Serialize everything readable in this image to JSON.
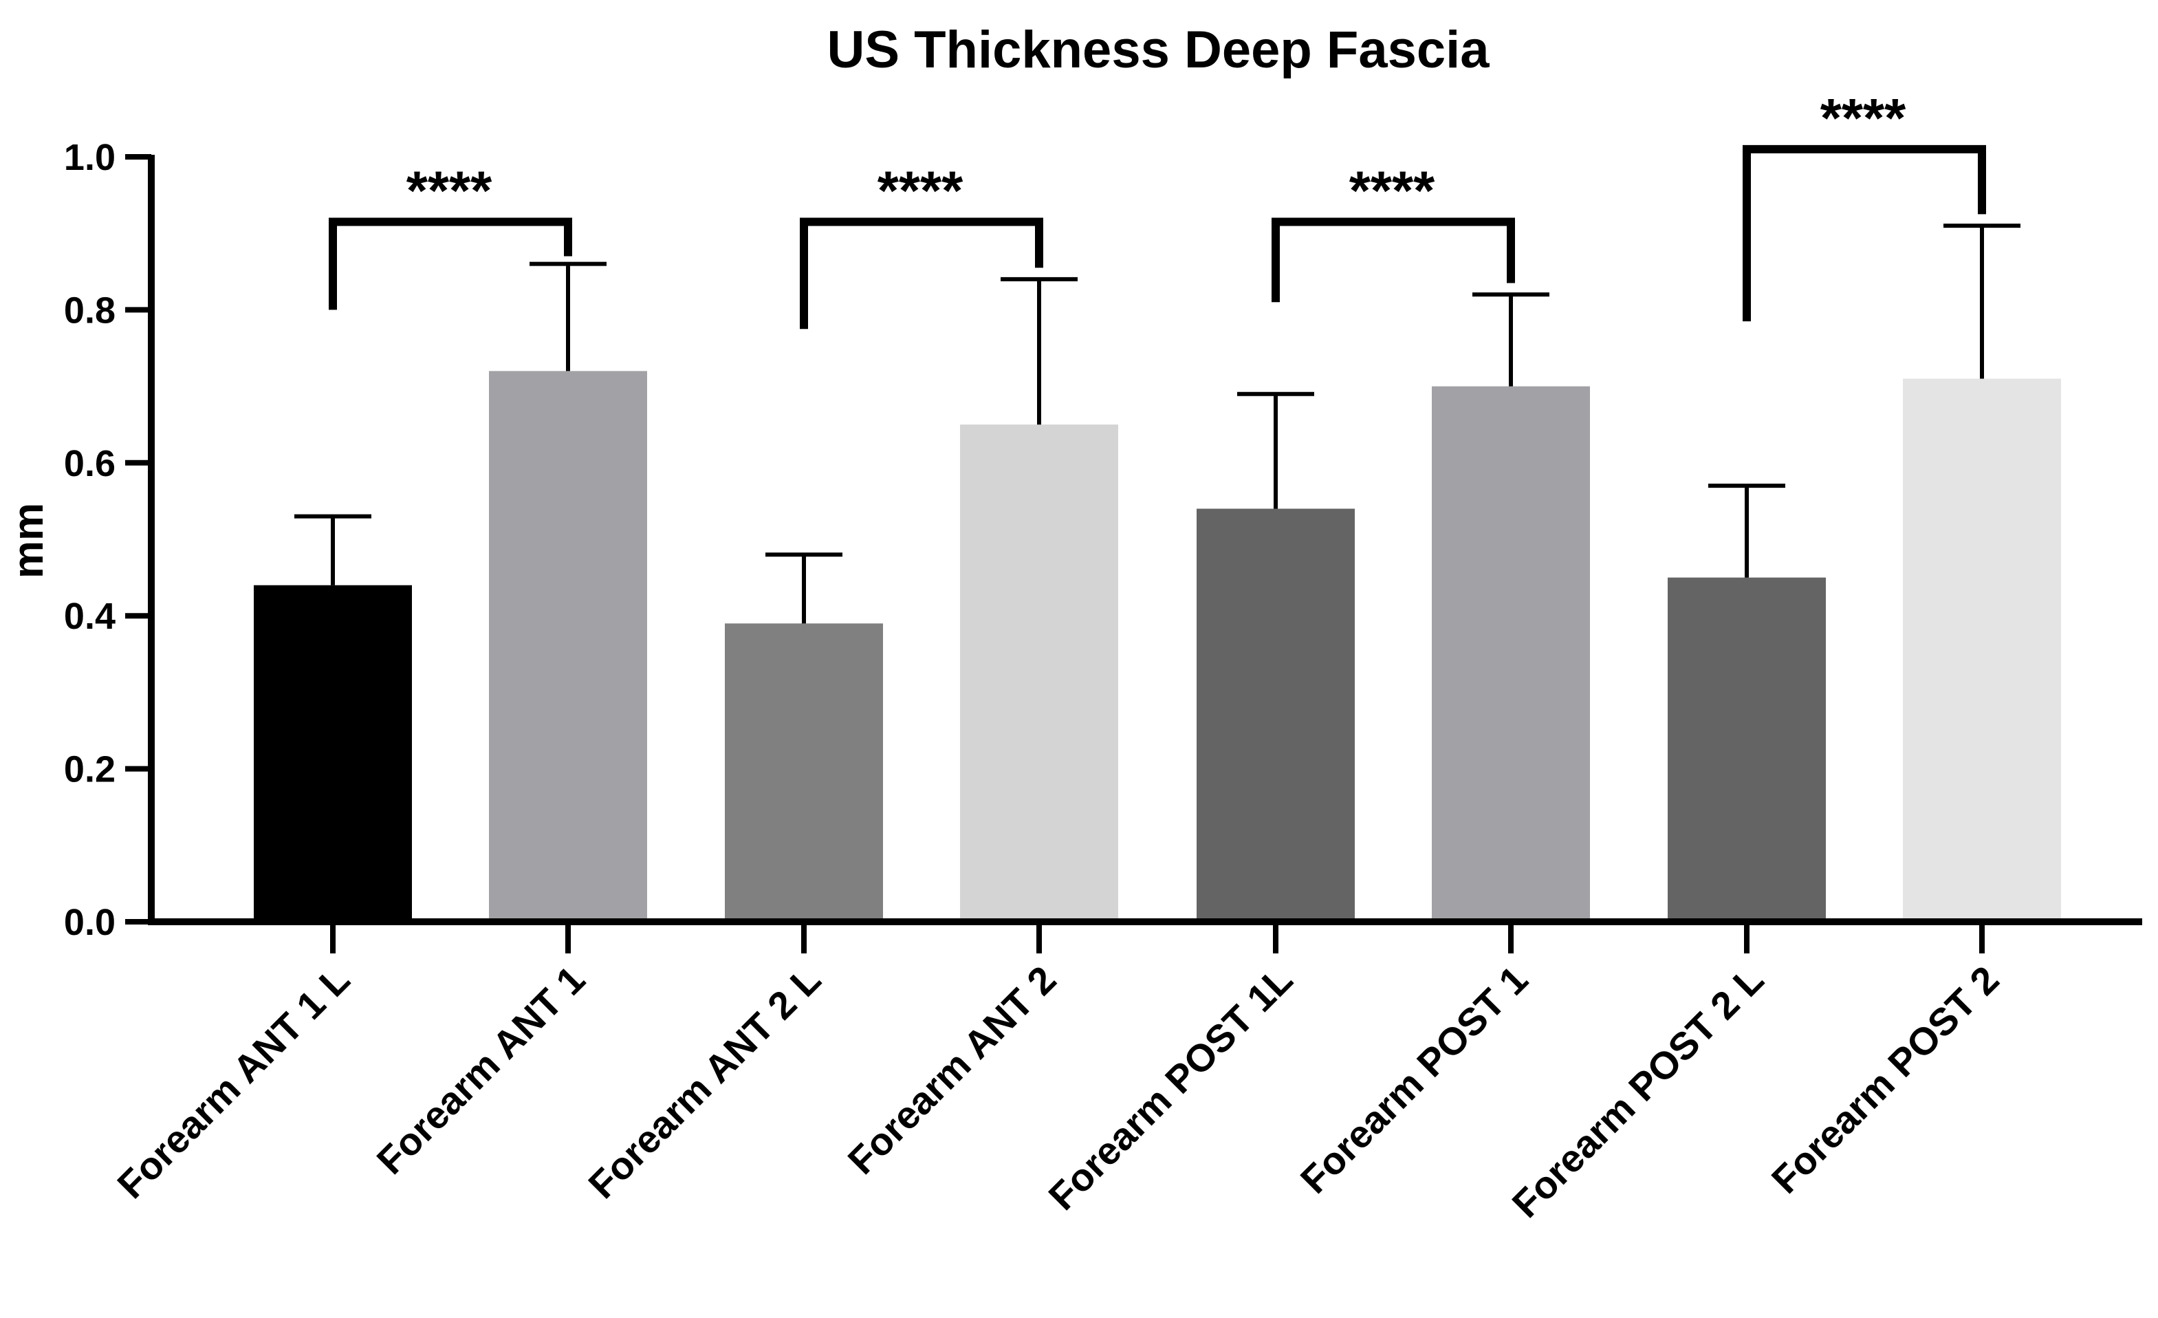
{
  "chart_data": {
    "type": "bar",
    "title": "US Thickness Deep Fascia",
    "xlabel": "",
    "ylabel": "mm",
    "ylim": [
      0,
      1.0
    ],
    "yticks": [
      "0.0",
      "0.2",
      "0.4",
      "0.6",
      "0.8",
      "1.0"
    ],
    "categories": [
      "Forearm ANT 1 L",
      "Forearm ANT 1",
      "Forearm ANT 2 L",
      "Forearm ANT 2",
      "Forearm POST 1L",
      "Forearm POST 1",
      "Forearm POST 2 L",
      "Forearm POST 2"
    ],
    "values": [
      0.44,
      0.72,
      0.39,
      0.65,
      0.54,
      0.7,
      0.45,
      0.71
    ],
    "error_upper": [
      0.53,
      0.86,
      0.48,
      0.84,
      0.69,
      0.82,
      0.57,
      0.91
    ],
    "colors": [
      "#000000",
      "#a2a2a6",
      "#808080",
      "#d4d4d4",
      "#646464",
      "#a2a2a6",
      "#646464",
      "#e4e4e4"
    ],
    "significance": [
      {
        "from": 0,
        "to": 1,
        "label": "****",
        "left_drop": 0.8,
        "right_drop": 0.87,
        "bracket_y": 0.915
      },
      {
        "from": 2,
        "to": 3,
        "label": "****",
        "left_drop": 0.775,
        "right_drop": 0.855,
        "bracket_y": 0.915
      },
      {
        "from": 4,
        "to": 5,
        "label": "****",
        "left_drop": 0.81,
        "right_drop": 0.835,
        "bracket_y": 0.915
      },
      {
        "from": 6,
        "to": 7,
        "label": "****",
        "left_drop": 0.785,
        "right_drop": 0.925,
        "bracket_y": 1.01
      }
    ],
    "grid": false,
    "legend": "none"
  }
}
